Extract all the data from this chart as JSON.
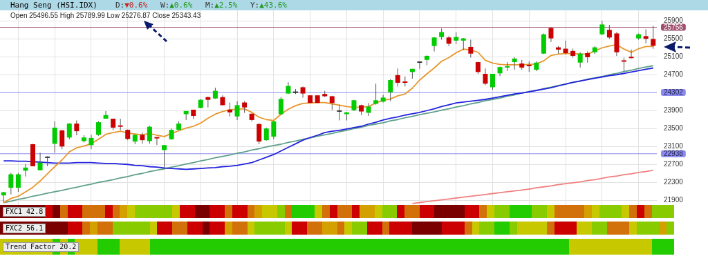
{
  "chart_data": {
    "type": "candlestick",
    "title": "Hang Seng (HSI.IDX)",
    "subtitle": "Open 25496.55  High 25789.99  Low 25276.87  Close 25343.43",
    "annotations": [
      "D:▼0.6%",
      "W:▲0.6%",
      "M:▲2.5%",
      "Y:▲43.6%",
      "FXC1 42.8",
      "FXC2 56.1",
      "Trend Factor 20.2"
    ],
    "categories": [
      null,
      null,
      null,
      null,
      null,
      null,
      null,
      null,
      null,
      null,
      null,
      null,
      null,
      null,
      null,
      null,
      null,
      null,
      null,
      null,
      null,
      null,
      null,
      null,
      null,
      null,
      null,
      null,
      null,
      null,
      null,
      null,
      null,
      null,
      null,
      null,
      null,
      null,
      null,
      null,
      null,
      null,
      null,
      null,
      null,
      null,
      null,
      null,
      null,
      null,
      null,
      null,
      null,
      null,
      null,
      null,
      null,
      null,
      null,
      null,
      null,
      null,
      null,
      null,
      null,
      null,
      null,
      null,
      null,
      null,
      null,
      null,
      null,
      null,
      null,
      null,
      null,
      null,
      null,
      null,
      null,
      null,
      null,
      null,
      null,
      null,
      null,
      null,
      null,
      null
    ],
    "ohlc": [
      [
        22010,
        22090,
        21850,
        22080
      ],
      [
        22180,
        22510,
        22030,
        22480
      ],
      [
        22180,
        22510,
        22090,
        22480
      ],
      [
        22560,
        22710,
        22430,
        22630
      ],
      [
        23150,
        23160,
        22660,
        22660
      ],
      [
        22570,
        22960,
        22570,
        22740
      ],
      [
        22860,
        22880,
        22660,
        22860
      ],
      [
        23160,
        23660,
        22960,
        23520
      ],
      [
        23460,
        23460,
        23040,
        23100
      ],
      [
        23300,
        23620,
        23260,
        23610
      ],
      [
        23610,
        23680,
        23350,
        23440
      ],
      [
        23220,
        23350,
        23190,
        23300
      ],
      [
        23130,
        23360,
        23040,
        23290
      ],
      [
        23360,
        23660,
        23340,
        23640
      ],
      [
        23720,
        23890,
        23720,
        23800
      ],
      [
        23720,
        23720,
        23460,
        23520
      ],
      [
        23570,
        23720,
        23460,
        23540
      ],
      [
        23470,
        23480,
        23240,
        23270
      ],
      [
        23210,
        23370,
        23150,
        23360
      ],
      [
        23360,
        23410,
        23160,
        23240
      ],
      [
        23220,
        23560,
        23160,
        23540
      ],
      [
        23300,
        23300,
        23130,
        23290
      ],
      [
        23020,
        23130,
        22620,
        23130
      ],
      [
        23260,
        23500,
        23250,
        23470
      ],
      [
        23470,
        23660,
        23460,
        23610
      ],
      [
        23820,
        23890,
        23690,
        23890
      ],
      [
        23920,
        23920,
        23720,
        23780
      ],
      [
        23960,
        24160,
        23950,
        24140
      ],
      [
        24200,
        24210,
        23970,
        24140
      ],
      [
        24170,
        24410,
        24160,
        24340
      ],
      [
        24200,
        24240,
        24020,
        24020
      ],
      [
        23920,
        24080,
        23770,
        23860
      ],
      [
        23770,
        24110,
        23690,
        24020
      ],
      [
        24080,
        24110,
        23850,
        23970
      ],
      [
        23830,
        23840,
        23660,
        23690
      ],
      [
        23600,
        23620,
        23150,
        23210
      ],
      [
        23240,
        23520,
        23230,
        23500
      ],
      [
        23320,
        23670,
        23260,
        23660
      ],
      [
        23820,
        24200,
        23800,
        24160
      ],
      [
        24280,
        24530,
        24270,
        24450
      ],
      [
        24310,
        24380,
        24270,
        24310
      ],
      [
        24420,
        24440,
        24190,
        24280
      ],
      [
        24240,
        24240,
        24070,
        24070
      ],
      [
        24240,
        24240,
        24070,
        24070
      ],
      [
        24270,
        24340,
        24200,
        24220
      ],
      [
        24220,
        24230,
        23910,
        24070
      ],
      [
        23890,
        24030,
        23680,
        23890
      ],
      [
        23820,
        23870,
        23680,
        23860
      ],
      [
        23910,
        24140,
        23890,
        24130
      ],
      [
        24020,
        24030,
        23800,
        23880
      ],
      [
        23850,
        24070,
        23780,
        23990
      ],
      [
        24050,
        24500,
        24030,
        24130
      ],
      [
        24100,
        24250,
        24080,
        24190
      ],
      [
        24310,
        24600,
        24110,
        24580
      ],
      [
        24690,
        24840,
        24440,
        24520
      ],
      [
        24550,
        24660,
        24440,
        24520
      ],
      [
        24760,
        24830,
        24610,
        24830
      ],
      [
        24980,
        24990,
        24830,
        24980
      ],
      [
        25030,
        25130,
        24910,
        25120
      ],
      [
        25340,
        25540,
        25220,
        25530
      ],
      [
        25540,
        25730,
        25480,
        25650
      ],
      [
        25530,
        25560,
        25340,
        25390
      ],
      [
        25460,
        25650,
        25390,
        25540
      ],
      [
        25460,
        25520,
        25250,
        25510
      ],
      [
        25320,
        25480,
        25080,
        25170
      ],
      [
        24980,
        24990,
        24720,
        24760
      ],
      [
        24720,
        24840,
        24470,
        24500
      ],
      [
        24420,
        24720,
        24360,
        24720
      ],
      [
        24730,
        24880,
        24670,
        24870
      ],
      [
        24860,
        24980,
        24780,
        24890
      ],
      [
        24980,
        25090,
        24810,
        25060
      ],
      [
        24950,
        25030,
        24810,
        24860
      ],
      [
        24920,
        25000,
        24760,
        24890
      ],
      [
        24810,
        25000,
        24780,
        24970
      ],
      [
        25170,
        25620,
        25160,
        25600
      ],
      [
        25740,
        25760,
        25430,
        25510
      ],
      [
        25310,
        25340,
        25170,
        25260
      ],
      [
        25280,
        25460,
        25150,
        25180
      ],
      [
        25230,
        25280,
        25080,
        25120
      ],
      [
        24970,
        25200,
        24860,
        25170
      ],
      [
        25180,
        25220,
        24970,
        25090
      ],
      [
        25200,
        25340,
        25160,
        25310
      ],
      [
        25600,
        25900,
        25590,
        25820
      ],
      [
        25700,
        25810,
        25500,
        25530
      ],
      [
        25620,
        25650,
        25120,
        25200
      ],
      [
        25010,
        25080,
        24780,
        25000
      ],
      [
        25090,
        25260,
        25060,
        25080
      ],
      [
        25510,
        25620,
        25480,
        25600
      ],
      [
        25560,
        25710,
        25400,
        25500
      ],
      [
        25496.55,
        25789.99,
        25276.87,
        25343.43
      ]
    ],
    "colors": [
      "#00cc00",
      "#00cc00",
      "#00cc00",
      "#00cc00",
      "#cc0000",
      "#00cc00",
      "#333333",
      "#00cc00",
      "#cc0000",
      "#00cc00",
      "#cc0000",
      "#00cc00",
      "#00cc00",
      "#00cc00",
      "#00cc00",
      "#cc0000",
      "#cc0000",
      "#cc0000",
      "#00cc00",
      "#cc0000",
      "#00cc00",
      "#cc0000",
      "#00cc00",
      "#00cc00",
      "#00cc00",
      "#00cc00",
      "#cc0000",
      "#00cc00",
      "#cc0000",
      "#00cc00",
      "#cc0000",
      "#cc0000",
      "#00cc00",
      "#cc0000",
      "#cc0000",
      "#cc0000",
      "#00cc00",
      "#00cc00",
      "#00cc00",
      "#00cc00",
      "#333333",
      "#cc0000",
      "#cc0000",
      "#cc0000",
      "#cc0000",
      "#cc0000",
      "#333333",
      "#00cc00",
      "#00cc00",
      "#cc0000",
      "#00cc00",
      "#00cc00",
      "#00cc00",
      "#00cc00",
      "#cc0000",
      "#cc0000",
      "#00cc00",
      "#333333",
      "#00cc00",
      "#00cc00",
      "#00cc00",
      "#cc0000",
      "#00cc00",
      "#00cc00",
      "#cc0000",
      "#cc0000",
      "#cc0000",
      "#00cc00",
      "#00cc00",
      "#00cc00",
      "#00cc00",
      "#cc0000",
      "#cc0000",
      "#00cc00",
      "#00cc00",
      "#cc0000",
      "#cc0000",
      "#cc0000",
      "#cc0000",
      "#00cc00",
      "#cc0000",
      "#00cc00",
      "#00cc00",
      "#cc0000",
      "#cc0000",
      "#cc0000",
      "#cc0000",
      "#00cc00",
      "#cc0000",
      "#cc0000"
    ],
    "series": [
      {
        "type": "line",
        "color": "#e8962a",
        "values": [
          21850,
          21940,
          21990,
          22090,
          22190,
          22330,
          22490,
          22650,
          22800,
          22980,
          23070,
          23110,
          23160,
          23260,
          23370,
          23410,
          23440,
          23400,
          23380,
          23360,
          23390,
          23350,
          23320,
          23390,
          23450,
          23510,
          23550,
          23620,
          23730,
          23820,
          23880,
          23920,
          23930,
          23940,
          23860,
          23750,
          23700,
          23680,
          23820,
          23930,
          24010,
          24060,
          24070,
          24080,
          24080,
          24050,
          24020,
          23990,
          23970,
          23980,
          23990,
          24070,
          24130,
          24160,
          24230,
          24270,
          24400,
          24580,
          24720,
          24850,
          25000,
          25080,
          25190,
          25270,
          25250,
          25200,
          25020,
          24960,
          24930,
          24920,
          24920,
          24920,
          24930,
          24940,
          25010,
          25130,
          25160,
          25170,
          25170,
          25160,
          25160,
          25230,
          25300,
          25340,
          25370,
          25270,
          25200,
          25280,
          25330,
          25330
        ]
      },
      {
        "type": "line",
        "color": "#2222dd",
        "values": [
          22780,
          22780,
          22770,
          22770,
          null,
          22750,
          22740,
          22730,
          22730,
          22730,
          22740,
          22740,
          22740,
          22730,
          22720,
          22720,
          22710,
          22700,
          22680,
          22670,
          22650,
          22640,
          22620,
          22610,
          22600,
          22590,
          22600,
          22610,
          22620,
          22630,
          22650,
          22660,
          22680,
          22710,
          22740,
          22800,
          22860,
          22920,
          23000,
          23080,
          23160,
          23240,
          23300,
          23350,
          23410,
          23440,
          23460,
          23490,
          23520,
          23550,
          23600,
          23640,
          23690,
          23730,
          23760,
          23800,
          23830,
          23860,
          23900,
          23940,
          23990,
          24030,
          24070,
          24090,
          24110,
          24130,
          24150,
          24180,
          24210,
          24240,
          24270,
          24290,
          24320,
          24350,
          24380,
          24410,
          24450,
          24490,
          24530,
          24560,
          24590,
          24620,
          24650,
          24680,
          24700,
          24730,
          24760,
          24790,
          24820,
          24850
        ]
      },
      {
        "type": "line",
        "color": "#5fa08a",
        "values": [
          21850,
          21880,
          21920,
          21950,
          21990,
          22020,
          22060,
          22090,
          22120,
          22160,
          22190,
          22230,
          22260,
          22300,
          22330,
          22360,
          22400,
          22430,
          22470,
          22500,
          22540,
          22570,
          22600,
          22640,
          22670,
          22710,
          22740,
          22780,
          22810,
          22850,
          22880,
          22910,
          22950,
          22980,
          23020,
          23050,
          23090,
          23120,
          23150,
          23190,
          23220,
          23260,
          23290,
          23330,
          23360,
          23390,
          23430,
          23460,
          23500,
          23530,
          23570,
          23600,
          23630,
          23670,
          23700,
          23740,
          23770,
          23810,
          23840,
          23870,
          23910,
          23940,
          23980,
          24010,
          24050,
          24080,
          24120,
          24150,
          24180,
          24220,
          24250,
          24290,
          24320,
          24350,
          24390,
          24420,
          24460,
          24490,
          24530,
          24560,
          24600,
          24630,
          24660,
          24700,
          24730,
          24770,
          24800,
          24840,
          24870,
          24900
        ]
      },
      {
        "type": "line",
        "color": "#f08080",
        "values": [
          null,
          null,
          null,
          null,
          null,
          null,
          null,
          null,
          null,
          null,
          null,
          null,
          null,
          null,
          null,
          null,
          null,
          null,
          null,
          null,
          null,
          null,
          null,
          null,
          null,
          null,
          null,
          null,
          null,
          null,
          null,
          null,
          null,
          null,
          null,
          null,
          null,
          null,
          null,
          null,
          null,
          null,
          null,
          null,
          null,
          null,
          null,
          null,
          null,
          null,
          null,
          null,
          null,
          null,
          null,
          null,
          21830,
          21850,
          21870,
          21890,
          21910,
          21930,
          21950,
          21970,
          21990,
          22010,
          22030,
          22050,
          22070,
          22090,
          22110,
          22130,
          22150,
          22180,
          22200,
          22220,
          22250,
          22270,
          22290,
          22310,
          22340,
          22360,
          22390,
          22420,
          22440,
          22470,
          22490,
          22520,
          22540,
          22570
        ]
      }
    ],
    "ref_lines": [
      {
        "axis": "y",
        "value": 25756,
        "label": "25756",
        "color": "#a0506e"
      },
      {
        "axis": "y",
        "value": 24302,
        "label": "24302",
        "color": "#8a8af0"
      },
      {
        "axis": "y",
        "value": 22938,
        "label": "22938",
        "color": "#8a8af0"
      }
    ],
    "ylim": [
      21750,
      26150
    ],
    "yticks": [
      21900,
      22300,
      22700,
      23100,
      23500,
      23900,
      24700,
      25100,
      25500,
      25900
    ],
    "grid": true,
    "tick_labels": "y",
    "legend": false
  }
}
